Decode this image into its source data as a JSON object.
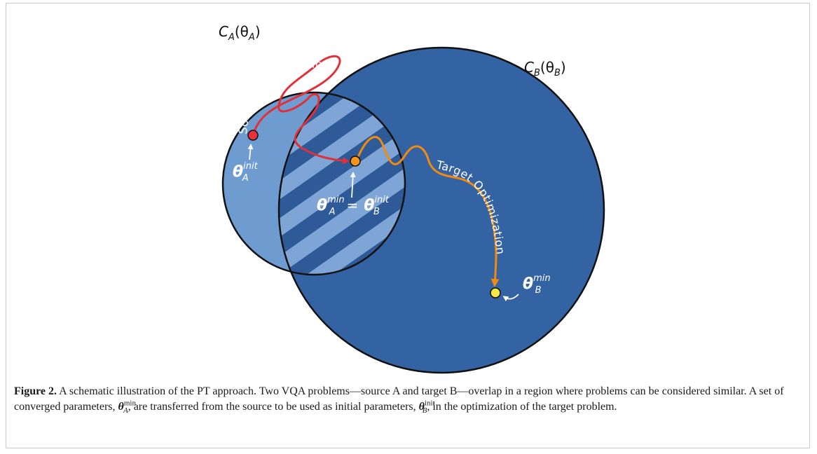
{
  "diagram": {
    "circle_a_label": {
      "base": "C",
      "sub": "A",
      "arg": "(θ",
      "arg_sub": "A",
      "close": ")"
    },
    "circle_b_label": {
      "base": "C",
      "sub": "B",
      "arg": "(θ",
      "arg_sub": "B",
      "close": ")"
    },
    "source_path_label": "Source Optimization",
    "target_path_label": "Target Optimization",
    "theta_a_init": {
      "base": "θ",
      "sup": "init",
      "sub": "A"
    },
    "theta_a_min_eq": {
      "base": "θ",
      "sup": "min",
      "sub": "A",
      "eq": "="
    },
    "theta_b_init": {
      "base": "θ",
      "sup": "init",
      "sub": "B"
    },
    "theta_b_min": {
      "base": "θ",
      "sup": "min",
      "sub": "B"
    },
    "colors": {
      "circle_a": "#6e9bd0",
      "circle_b": "#3463a4",
      "stripe_light": "#7ea5d6",
      "stripe_dark": "#2e5b98",
      "source_path": "#e0303a",
      "target_path": "#f08a10",
      "start_point": "#e8303a",
      "transfer_point": "#f7941d",
      "end_point": "#f7e84a"
    }
  },
  "caption": {
    "label": "Figure 2.",
    "text_1": "A schematic illustration of the PT approach. Two VQA problems—source A and target B—overlap in a region where problems can be considered similar. A set of converged parameters, ",
    "math_1": {
      "base": "θ",
      "sup": "min",
      "sub": "A"
    },
    "text_2": ", are transferred from the source to be used as initial parameters, ",
    "math_2": {
      "base": "θ",
      "sup": "init",
      "sub": "B"
    },
    "text_3": ", in the optimization of the target problem."
  }
}
